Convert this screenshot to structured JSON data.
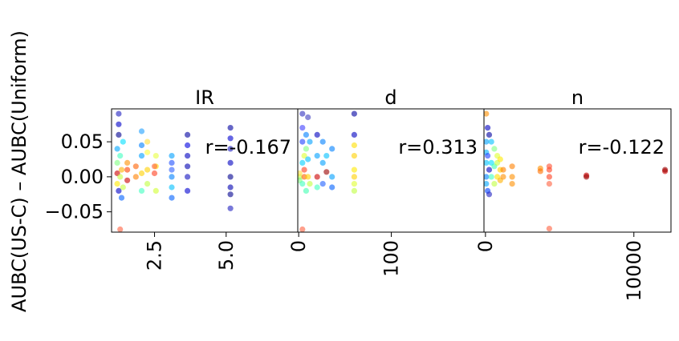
{
  "ylabel": "AUBC(US-C) – AUBC(Uniform)",
  "chart_data": [
    {
      "type": "scatter",
      "title": "IR",
      "xlim": [
        1.0,
        7.5
      ],
      "ylim": [
        -0.079,
        0.097
      ],
      "yticks": [
        {
          "value": 0.05,
          "label": "0.05"
        },
        {
          "value": 0.0,
          "label": "0.00"
        },
        {
          "value": -0.05,
          "label": "−0.05"
        }
      ],
      "xticks": [
        {
          "value": 2.5,
          "label": "2.5"
        },
        {
          "value": 5.0,
          "label": "5.0"
        }
      ],
      "annotation": "r=-0.167",
      "points": [
        {
          "x": 1.2,
          "y": 0.005,
          "color": "#cc0000"
        },
        {
          "x": 1.2,
          "y": 0.02,
          "color": "#80ff80"
        },
        {
          "x": 1.2,
          "y": -0.01,
          "color": "#ffea00"
        },
        {
          "x": 1.2,
          "y": 0.04,
          "color": "#00a6ff"
        },
        {
          "x": 1.25,
          "y": 0.06,
          "color": "#00008f"
        },
        {
          "x": 1.25,
          "y": 0.09,
          "color": "#2020c0"
        },
        {
          "x": 1.25,
          "y": -0.02,
          "color": "#0000c8"
        },
        {
          "x": 1.25,
          "y": 0.075,
          "color": "#0000c8"
        },
        {
          "x": 1.3,
          "y": 0.0,
          "color": "#c8ff40"
        },
        {
          "x": 1.3,
          "y": 0.03,
          "color": "#40ffc0"
        },
        {
          "x": 1.35,
          "y": 0.01,
          "color": "#ffb000"
        },
        {
          "x": 1.35,
          "y": -0.03,
          "color": "#0060ff"
        },
        {
          "x": 1.4,
          "y": 0.05,
          "color": "#00e0ff"
        },
        {
          "x": 1.4,
          "y": -0.015,
          "color": "#c8ff40"
        },
        {
          "x": 1.3,
          "y": -0.075,
          "color": "#ff6040"
        },
        {
          "x": 1.55,
          "y": 0.01,
          "color": "#ff4000"
        },
        {
          "x": 1.55,
          "y": -0.005,
          "color": "#cc0000"
        },
        {
          "x": 1.55,
          "y": 0.02,
          "color": "#ff9000"
        },
        {
          "x": 1.85,
          "y": 0.015,
          "color": "#ff6000"
        },
        {
          "x": 1.85,
          "y": 0.0,
          "color": "#ff8000"
        },
        {
          "x": 2.05,
          "y": 0.03,
          "color": "#00a0ff"
        },
        {
          "x": 2.05,
          "y": 0.065,
          "color": "#20a0ff"
        },
        {
          "x": 2.05,
          "y": -0.02,
          "color": "#40ffc0"
        },
        {
          "x": 2.05,
          "y": 0.005,
          "color": "#ffd000"
        },
        {
          "x": 2.05,
          "y": 0.045,
          "color": "#0080ff"
        },
        {
          "x": 2.25,
          "y": 0.01,
          "color": "#ffd000"
        },
        {
          "x": 2.25,
          "y": 0.05,
          "color": "#ffe040"
        },
        {
          "x": 2.25,
          "y": -0.01,
          "color": "#c0ff40"
        },
        {
          "x": 2.25,
          "y": 0.035,
          "color": "#ffff40"
        },
        {
          "x": 2.55,
          "y": 0.015,
          "color": "#ffe000"
        },
        {
          "x": 2.55,
          "y": -0.02,
          "color": "#d0ff30"
        },
        {
          "x": 2.55,
          "y": 0.03,
          "color": "#e8ff40"
        },
        {
          "x": 2.5,
          "y": 0.005,
          "color": "#ff4020"
        },
        {
          "x": 2.5,
          "y": 0.015,
          "color": "#ff6040"
        },
        {
          "x": 3.1,
          "y": 0.03,
          "color": "#00a0ff"
        },
        {
          "x": 3.1,
          "y": -0.03,
          "color": "#0060ff"
        },
        {
          "x": 3.1,
          "y": 0.0,
          "color": "#0080ff"
        },
        {
          "x": 3.1,
          "y": -0.015,
          "color": "#00c0ff"
        },
        {
          "x": 3.1,
          "y": 0.02,
          "color": "#2050ff"
        },
        {
          "x": 3.1,
          "y": 0.01,
          "color": "#3060ff"
        },
        {
          "x": 3.65,
          "y": 0.06,
          "color": "#0000a0"
        },
        {
          "x": 3.65,
          "y": 0.03,
          "color": "#0000c0"
        },
        {
          "x": 3.65,
          "y": 0.0,
          "color": "#1010c0"
        },
        {
          "x": 3.65,
          "y": -0.02,
          "color": "#0000d0"
        },
        {
          "x": 3.65,
          "y": 0.045,
          "color": "#0000e0"
        },
        {
          "x": 3.65,
          "y": 0.015,
          "color": "#0000b0"
        },
        {
          "x": 5.15,
          "y": 0.07,
          "color": "#0000a0"
        },
        {
          "x": 5.15,
          "y": 0.04,
          "color": "#2020c0"
        },
        {
          "x": 5.15,
          "y": 0.0,
          "color": "#00008f"
        },
        {
          "x": 5.15,
          "y": -0.045,
          "color": "#2020c0"
        },
        {
          "x": 5.15,
          "y": 0.02,
          "color": "#0000c0"
        },
        {
          "x": 5.15,
          "y": -0.015,
          "color": "#0000b0"
        },
        {
          "x": 5.15,
          "y": 0.055,
          "color": "#0000d0"
        },
        {
          "x": 5.15,
          "y": -0.025,
          "color": "#00008f"
        }
      ]
    },
    {
      "type": "scatter",
      "title": "d",
      "xlim": [
        -1,
        200
      ],
      "ylim": [
        -0.079,
        0.097
      ],
      "xticks": [
        {
          "value": 0,
          "label": "0"
        },
        {
          "value": 100,
          "label": "100"
        }
      ],
      "annotation": "r=0.313",
      "points": [
        {
          "x": 1,
          "y": 0.0,
          "color": "#c0ff40"
        },
        {
          "x": 1,
          "y": -0.005,
          "color": "#80ff80"
        },
        {
          "x": 1,
          "y": 0.005,
          "color": "#ffe040"
        },
        {
          "x": 4,
          "y": 0.05,
          "color": "#2040ff"
        },
        {
          "x": 4,
          "y": 0.09,
          "color": "#3030c0"
        },
        {
          "x": 4,
          "y": 0.02,
          "color": "#00d0ff"
        },
        {
          "x": 4,
          "y": -0.01,
          "color": "#40ffc0"
        },
        {
          "x": 4,
          "y": 0.07,
          "color": "#4040ff"
        },
        {
          "x": 4,
          "y": -0.075,
          "color": "#ff6040"
        },
        {
          "x": 6,
          "y": 0.0,
          "color": "#ff6000"
        },
        {
          "x": 6,
          "y": 0.01,
          "color": "#ff4020"
        },
        {
          "x": 6,
          "y": 0.03,
          "color": "#e0ff30"
        },
        {
          "x": 8,
          "y": 0.06,
          "color": "#0080ff"
        },
        {
          "x": 8,
          "y": -0.02,
          "color": "#40ffb0"
        },
        {
          "x": 8,
          "y": 0.04,
          "color": "#80ff80"
        },
        {
          "x": 10,
          "y": 0.085,
          "color": "#4040c0"
        },
        {
          "x": 10,
          "y": 0.0,
          "color": "#ffd000"
        },
        {
          "x": 10,
          "y": 0.025,
          "color": "#00c0ff"
        },
        {
          "x": 12,
          "y": 0.05,
          "color": "#00a0ff"
        },
        {
          "x": 12,
          "y": -0.01,
          "color": "#c0ff40"
        },
        {
          "x": 20,
          "y": 0.0,
          "color": "#cc0000"
        },
        {
          "x": 20,
          "y": 0.06,
          "color": "#0000c0"
        },
        {
          "x": 20,
          "y": 0.03,
          "color": "#00a0ff"
        },
        {
          "x": 20,
          "y": -0.015,
          "color": "#40ffc0"
        },
        {
          "x": 26,
          "y": 0.05,
          "color": "#0080ff"
        },
        {
          "x": 26,
          "y": 0.02,
          "color": "#00a0ff"
        },
        {
          "x": 26,
          "y": -0.01,
          "color": "#2060ff"
        },
        {
          "x": 30,
          "y": 0.007,
          "color": "#990000"
        },
        {
          "x": 30,
          "y": 0.03,
          "color": "#00c0ff"
        },
        {
          "x": 36,
          "y": 0.04,
          "color": "#0080ff"
        },
        {
          "x": 36,
          "y": 0.0,
          "color": "#00a0ff"
        },
        {
          "x": 36,
          "y": -0.015,
          "color": "#0060ff"
        },
        {
          "x": 60,
          "y": 0.09,
          "color": "#0000a0"
        },
        {
          "x": 60,
          "y": 0.06,
          "color": "#0000c0"
        },
        {
          "x": 60,
          "y": 0.03,
          "color": "#ffd000"
        },
        {
          "x": 60,
          "y": 0.01,
          "color": "#ffea00"
        },
        {
          "x": 60,
          "y": -0.01,
          "color": "#e0ff30"
        },
        {
          "x": 60,
          "y": 0.045,
          "color": "#ffe000"
        },
        {
          "x": 60,
          "y": 0.0,
          "color": "#ffd000"
        },
        {
          "x": 60,
          "y": -0.02,
          "color": "#c0ff40"
        }
      ]
    },
    {
      "type": "scatter",
      "title": "n",
      "xlim": [
        -100,
        12500
      ],
      "ylim": [
        -0.079,
        0.097
      ],
      "xticks": [
        {
          "value": 0,
          "label": "0"
        },
        {
          "value": 10000,
          "label": "10000"
        }
      ],
      "annotation": "r=-0.122",
      "points": [
        {
          "x": 50,
          "y": 0.09,
          "color": "#ff9000"
        },
        {
          "x": 50,
          "y": 0.05,
          "color": "#00a0ff"
        },
        {
          "x": 50,
          "y": 0.02,
          "color": "#00c0ff"
        },
        {
          "x": 50,
          "y": 0.0,
          "color": "#0080ff"
        },
        {
          "x": 50,
          "y": -0.01,
          "color": "#00a6ff"
        },
        {
          "x": 50,
          "y": 0.035,
          "color": "#00b0ff"
        },
        {
          "x": 150,
          "y": 0.07,
          "color": "#0000c0"
        },
        {
          "x": 150,
          "y": 0.03,
          "color": "#2040ff"
        },
        {
          "x": 150,
          "y": -0.02,
          "color": "#0040ff"
        },
        {
          "x": 250,
          "y": 0.06,
          "color": "#0000a0"
        },
        {
          "x": 250,
          "y": 0.01,
          "color": "#0000c0"
        },
        {
          "x": 250,
          "y": -0.025,
          "color": "#2020c0"
        },
        {
          "x": 400,
          "y": 0.05,
          "color": "#00c0ff"
        },
        {
          "x": 400,
          "y": 0.0,
          "color": "#40ffc0"
        },
        {
          "x": 400,
          "y": 0.02,
          "color": "#00e0ff"
        },
        {
          "x": 600,
          "y": 0.04,
          "color": "#80ff80"
        },
        {
          "x": 600,
          "y": -0.01,
          "color": "#c0ff40"
        },
        {
          "x": 600,
          "y": 0.015,
          "color": "#40ffb0"
        },
        {
          "x": 800,
          "y": 0.03,
          "color": "#e0ff30"
        },
        {
          "x": 800,
          "y": 0.0,
          "color": "#ffe000"
        },
        {
          "x": 800,
          "y": 0.02,
          "color": "#c0ff40"
        },
        {
          "x": 1000,
          "y": 0.01,
          "color": "#ffd000"
        },
        {
          "x": 1000,
          "y": -0.005,
          "color": "#ffb000"
        },
        {
          "x": 1000,
          "y": 0.025,
          "color": "#ffea00"
        },
        {
          "x": 1200,
          "y": 0.0,
          "color": "#ff9000"
        },
        {
          "x": 1200,
          "y": 0.01,
          "color": "#ff8000"
        },
        {
          "x": 1800,
          "y": 0.0,
          "color": "#ff9000"
        },
        {
          "x": 1800,
          "y": 0.015,
          "color": "#ff8000"
        },
        {
          "x": 1800,
          "y": -0.01,
          "color": "#ff9000"
        },
        {
          "x": 3700,
          "y": 0.012,
          "color": "#ff9000"
        },
        {
          "x": 3700,
          "y": 0.008,
          "color": "#ff7000"
        },
        {
          "x": 4300,
          "y": 0.01,
          "color": "#ff4020"
        },
        {
          "x": 4300,
          "y": 0.0,
          "color": "#ff4020"
        },
        {
          "x": 4300,
          "y": -0.01,
          "color": "#ff6040"
        },
        {
          "x": 4300,
          "y": -0.074,
          "color": "#ff6040"
        },
        {
          "x": 4300,
          "y": 0.015,
          "color": "#ff5030"
        },
        {
          "x": 6800,
          "y": 0.002,
          "color": "#cc0000"
        },
        {
          "x": 6800,
          "y": 0.0,
          "color": "#990000"
        },
        {
          "x": 12100,
          "y": 0.008,
          "color": "#cc0000"
        },
        {
          "x": 12100,
          "y": 0.01,
          "color": "#990000"
        }
      ]
    }
  ]
}
